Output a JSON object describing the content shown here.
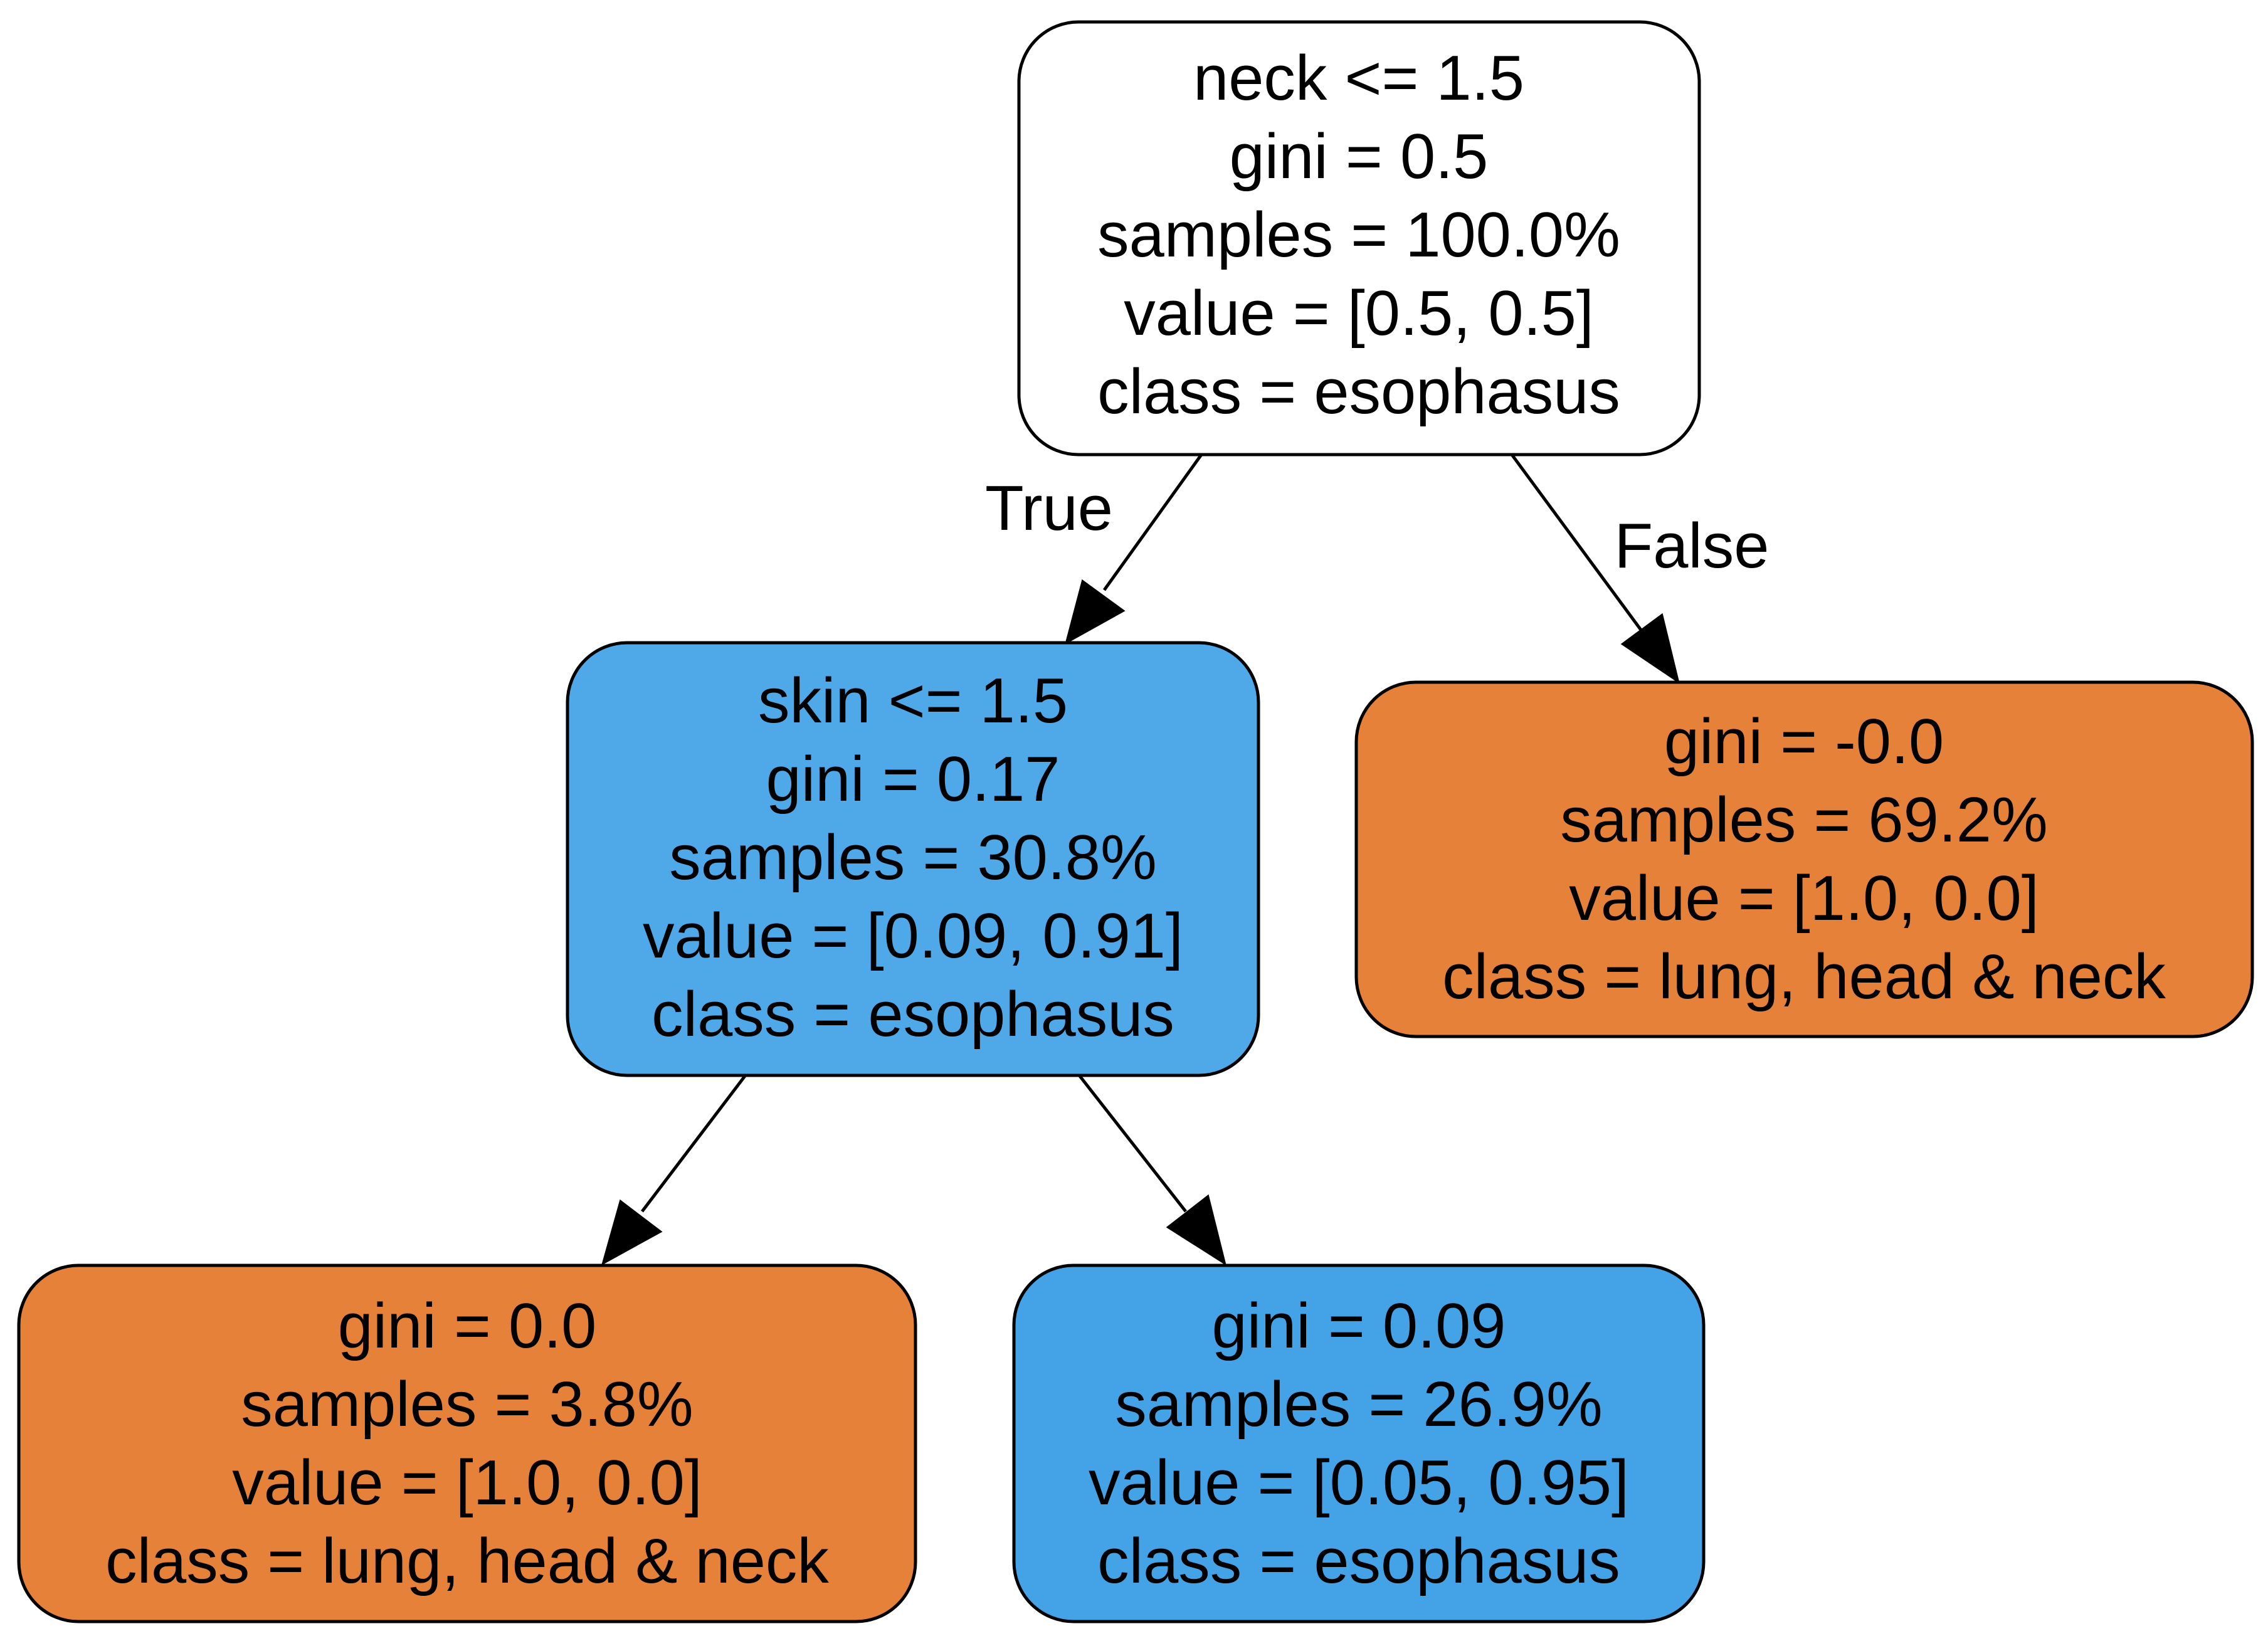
{
  "tree": {
    "nodes": [
      {
        "id": "root",
        "fill": "#ffffff",
        "lines": [
          "neck <= 1.5",
          "gini = 0.5",
          "samples = 100.0%",
          "value = [0.5, 0.5]",
          "class = esophasus"
        ]
      },
      {
        "id": "left",
        "fill": "#4fa8e8",
        "lines": [
          "skin <= 1.5",
          "gini = 0.17",
          "samples = 30.8%",
          "value = [0.09, 0.91]",
          "class = esophasus"
        ]
      },
      {
        "id": "right",
        "fill": "#e58139",
        "lines": [
          "gini = -0.0",
          "samples = 69.2%",
          "value = [1.0, 0.0]",
          "class = lung, head & neck"
        ]
      },
      {
        "id": "left-left",
        "fill": "#e58139",
        "lines": [
          "gini = 0.0",
          "samples = 3.8%",
          "value = [1.0, 0.0]",
          "class = lung, head & neck"
        ]
      },
      {
        "id": "left-right",
        "fill": "#44a2e6",
        "lines": [
          "gini = 0.09",
          "samples = 26.9%",
          "value = [0.05, 0.95]",
          "class = esophasus"
        ]
      }
    ],
    "edges": [
      {
        "from": "root",
        "to": "left",
        "label": "True"
      },
      {
        "from": "root",
        "to": "right",
        "label": "False"
      },
      {
        "from": "left",
        "to": "left-left",
        "label": ""
      },
      {
        "from": "left",
        "to": "left-right",
        "label": ""
      }
    ]
  }
}
